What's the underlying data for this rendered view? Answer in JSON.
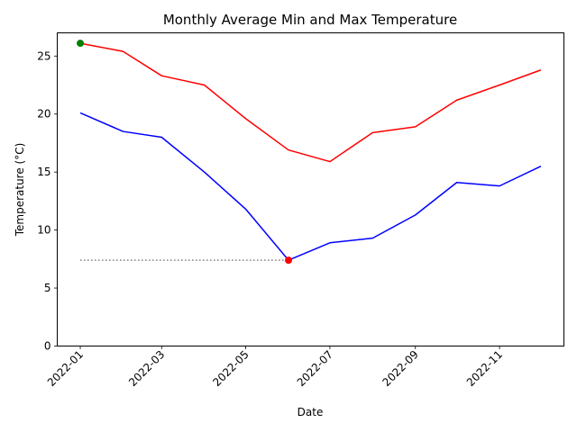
{
  "chart_data": {
    "type": "line",
    "title": "Monthly Average Min and Max Temperature",
    "xlabel": "Date",
    "ylabel": "Temperature (°C)",
    "x": [
      "2022-01",
      "2022-02",
      "2022-03",
      "2022-04",
      "2022-05",
      "2022-06",
      "2022-07",
      "2022-08",
      "2022-09",
      "2022-10",
      "2022-11",
      "2022-12"
    ],
    "xtick_labels": [
      "2022-01",
      "2022-03",
      "2022-05",
      "2022-07",
      "2022-09",
      "2022-11"
    ],
    "ylim": [
      0,
      27
    ],
    "yticks": [
      0,
      5,
      10,
      15,
      20,
      25
    ],
    "grid": false,
    "legend": "none",
    "series": [
      {
        "color": "#ff0000",
        "values": [
          26.1,
          25.4,
          23.3,
          22.5,
          19.6,
          16.9,
          15.9,
          18.4,
          18.9,
          21.2,
          22.5,
          23.8
        ]
      },
      {
        "color": "#0000ff",
        "values": [
          20.1,
          18.5,
          18.0,
          15.0,
          11.8,
          7.4,
          8.9,
          9.3,
          11.3,
          14.1,
          13.8,
          15.5
        ]
      }
    ],
    "highlights": [
      {
        "x": "2022-01",
        "y": 26.1,
        "color": "#008000"
      },
      {
        "x": "2022-06",
        "y": 7.4,
        "color": "#ff0000"
      }
    ],
    "reference_line": {
      "x_from": "2022-01",
      "x_to": "2022-06",
      "y": 7.4,
      "color": "#808080",
      "style": "dotted"
    }
  }
}
